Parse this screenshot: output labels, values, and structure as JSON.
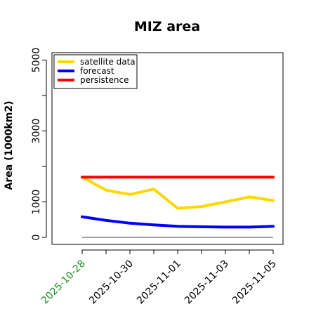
{
  "chart_data": {
    "type": "line",
    "title": "MIZ area",
    "xlabel": "",
    "ylabel": "Area (1000km2)",
    "x": [
      "2025-10-28",
      "2025-10-29",
      "2025-10-30",
      "2025-10-31",
      "2025-11-01",
      "2025-11-02",
      "2025-11-03",
      "2025-11-04",
      "2025-11-05"
    ],
    "x_tick_labels": [
      "2025-10-28",
      "2025-10-30",
      "2025-11-01",
      "2025-11-03",
      "2025-11-05"
    ],
    "x_tick_colors": [
      "#228B22",
      "#000000",
      "#000000",
      "#000000",
      "#000000"
    ],
    "yticks": [
      0,
      1000,
      3000,
      5000
    ],
    "ylim": [
      -100,
      5250
    ],
    "grid": false,
    "legend_position": "top-left",
    "series": [
      {
        "name": "satellite data",
        "color": "#FFD700",
        "values": [
          1700,
          1330,
          1210,
          1360,
          820,
          870,
          1000,
          1140,
          1040
        ]
      },
      {
        "name": "forecast",
        "color": "#0000FF",
        "values": [
          580,
          480,
          400,
          350,
          310,
          300,
          290,
          290,
          310
        ]
      },
      {
        "name": "persistence",
        "color": "#FF0000",
        "values": [
          1700,
          1700,
          1700,
          1700,
          1700,
          1700,
          1700,
          1700,
          1700
        ]
      }
    ],
    "reference_line": {
      "value": 0,
      "color": "#808080"
    }
  }
}
